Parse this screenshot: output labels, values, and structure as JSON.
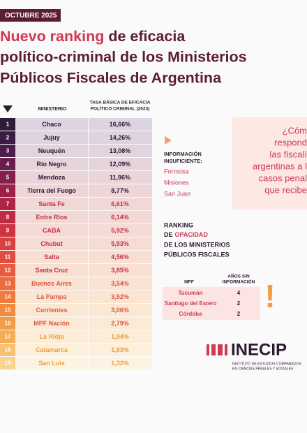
{
  "header": {
    "date": "OCTUBRE 2025",
    "title": {
      "highlight": "Nuevo ranking",
      "line1": "de eficacia",
      "line2": "político-criminal de los Ministerios",
      "line3": "Públicos Fiscales de Argentina"
    }
  },
  "table": {
    "col_ministry": "MINISTERIO",
    "col_rate": [
      "TASA BÁSICA DE EFICACIA",
      "POLÍTICO CRIMINAL (2023)"
    ],
    "rows": [
      {
        "rank": "1",
        "name": "Chaco",
        "value": "16,66%"
      },
      {
        "rank": "2",
        "name": "Jujuy",
        "value": "14,26%"
      },
      {
        "rank": "3",
        "name": "Neuquén",
        "value": "13,08%"
      },
      {
        "rank": "4",
        "name": "Río Negro",
        "value": "12,09%"
      },
      {
        "rank": "5",
        "name": "Mendoza",
        "value": "11,96%"
      },
      {
        "rank": "6",
        "name": "Tierra del Fuego",
        "value": "8,77%"
      },
      {
        "rank": "7",
        "name": "Santa Fe",
        "value": "6,61%"
      },
      {
        "rank": "8",
        "name": "Entre Ríos",
        "value": "6,14%"
      },
      {
        "rank": "9",
        "name": "CABA",
        "value": "5,92%"
      },
      {
        "rank": "10",
        "name": "Chubut",
        "value": "5,53%"
      },
      {
        "rank": "11",
        "name": "Salta",
        "value": "4,56%"
      },
      {
        "rank": "12",
        "name": "Santa Cruz",
        "value": "3,85%"
      },
      {
        "rank": "13",
        "name": "Buenos Aires",
        "value": "3,54%"
      },
      {
        "rank": "14",
        "name": "La Pampa",
        "value": "3,52%"
      },
      {
        "rank": "15",
        "name": "Corrientes",
        "value": "3,06%"
      },
      {
        "rank": "16",
        "name": "MPF Nación",
        "value": "2,79%"
      },
      {
        "rank": "17",
        "name": "La Rioja",
        "value": "1,94%"
      },
      {
        "rank": "18",
        "name": "Catamarca",
        "value": "1,83%"
      },
      {
        "rank": "19",
        "name": "San Luis",
        "value": "1,32%"
      }
    ]
  },
  "insufficient": {
    "heading": [
      "INFORMACIÓN",
      "INSUFICIENTE:"
    ],
    "items": [
      "Formosa",
      "Misiones",
      "San Juan"
    ]
  },
  "question": [
    "¿Cóm",
    "respond",
    "las fiscalí",
    "argentinas a l",
    "casos penal",
    "que recibe"
  ],
  "opacity": {
    "heading": {
      "line1": "RANKING",
      "line2_pre": "DE",
      "line2_highlight": "OPACIDAD",
      "line3": "DE LOS MINISTERIOS",
      "line4": "PÚBLICOS FISCALES"
    },
    "col_mpf": "MPF",
    "col_years": [
      "AÑOS SIN",
      "INFORMACIÓN"
    ],
    "rows": [
      {
        "name": "Tucumán",
        "years": "4"
      },
      {
        "name": "Santiago del Estero",
        "years": "2"
      },
      {
        "name": "Córdoba",
        "years": "2"
      }
    ]
  },
  "logo": {
    "name": "INECIP",
    "subtitle": [
      "INSTITUTO DE ESTUDIOS COMPARADOS",
      "EN CIENCIAS PENALES Y SOCIALES"
    ]
  }
}
